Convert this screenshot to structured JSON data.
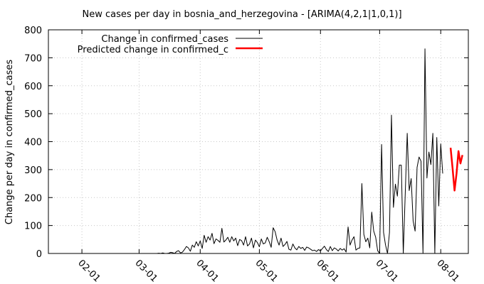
{
  "chart_data": {
    "type": "line",
    "title": "New cases per day in bosnia_and_herzegovina -  [ARIMA(4,2,1|1,0,1)]",
    "xlabel": "",
    "ylabel": "Change per day in confirmed_cases",
    "x_tick_labels": [
      "02-01",
      "03-01",
      "04-01",
      "05-01",
      "06-01",
      "07-01",
      "08-01"
    ],
    "x_ticks": [
      "2020-02-01",
      "2020-03-01",
      "2020-04-01",
      "2020-05-01",
      "2020-06-01",
      "2020-07-01",
      "2020-08-01"
    ],
    "xlim": [
      "2020-01-15",
      "2020-08-15"
    ],
    "y_ticks": [
      0,
      100,
      200,
      300,
      400,
      500,
      600,
      700,
      800
    ],
    "ylim": [
      0,
      800
    ],
    "grid": true,
    "legend_position": "top-left",
    "colors": {
      "actual": "#000000",
      "predicted": "#ff0000",
      "grid": "#c8c8c8"
    },
    "series": [
      {
        "name": "Change in confirmed_cases",
        "color": "#000000",
        "start_date": "2020-01-22",
        "values": [
          0,
          0,
          0,
          0,
          0,
          0,
          0,
          0,
          0,
          0,
          0,
          0,
          0,
          0,
          0,
          0,
          0,
          0,
          0,
          0,
          0,
          0,
          0,
          0,
          0,
          0,
          0,
          0,
          0,
          0,
          0,
          0,
          0,
          0,
          0,
          0,
          0,
          0,
          0,
          0,
          0,
          0,
          0,
          0,
          0,
          0,
          0,
          0,
          0,
          1,
          0,
          2,
          0,
          0,
          1,
          4,
          3,
          0,
          7,
          10,
          2,
          5,
          14,
          25,
          20,
          8,
          30,
          22,
          42,
          27,
          45,
          18,
          65,
          40,
          60,
          48,
          72,
          35,
          52,
          47,
          40,
          90,
          41,
          48,
          58,
          40,
          60,
          45,
          55,
          28,
          50,
          46,
          30,
          60,
          27,
          34,
          55,
          20,
          48,
          39,
          24,
          52,
          34,
          38,
          58,
          42,
          22,
          92,
          78,
          48,
          30,
          55,
          25,
          32,
          43,
          15,
          12,
          34,
          20,
          13,
          25,
          18,
          22,
          11,
          23,
          20,
          15,
          10,
          12,
          7,
          14,
          9,
          18,
          26,
          14,
          7,
          25,
          10,
          20,
          16,
          9,
          18,
          12,
          17,
          5,
          95,
          30,
          48,
          60,
          12,
          18,
          20,
          250,
          68,
          42,
          55,
          20,
          148,
          80,
          58,
          10,
          0,
          390,
          75,
          30,
          0,
          75,
          495,
          165,
          248,
          205,
          316,
          316,
          0,
          215,
          430,
          225,
          268,
          116,
          80,
          308,
          345,
          330,
          0,
          732,
          270,
          363,
          318,
          430,
          0,
          415,
          170,
          392,
          286
        ]
      },
      {
        "name": "Predicted change in confirmed_c",
        "color": "#ff0000",
        "start_date": "2020-08-06",
        "values": [
          378,
          305,
          225,
          285,
          366,
          322,
          352
        ]
      }
    ]
  }
}
